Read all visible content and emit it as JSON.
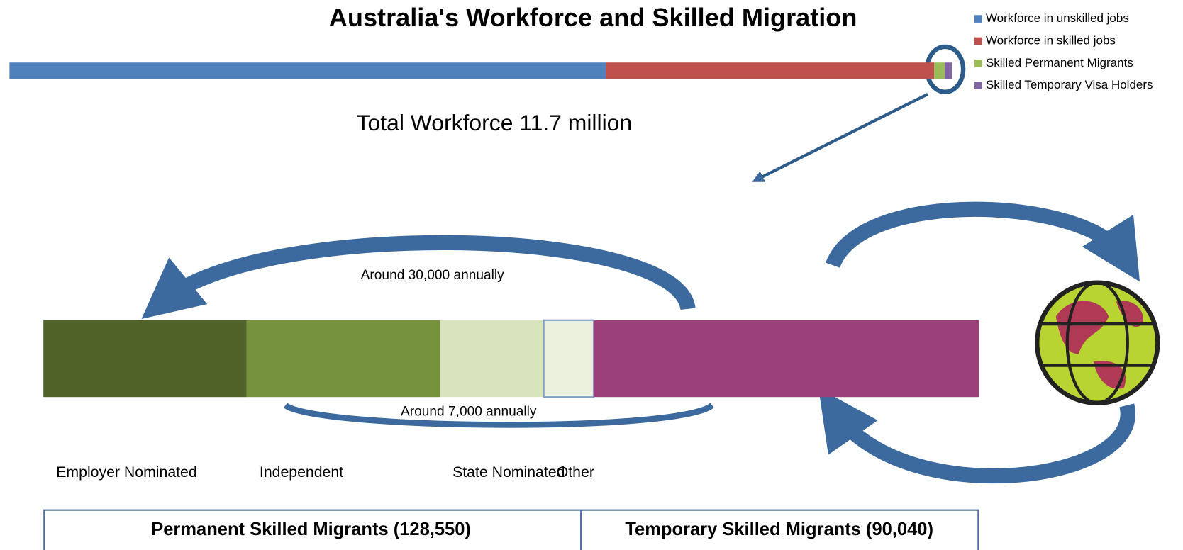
{
  "chart_data": [
    {
      "type": "stacked-bar",
      "title": "Australia's Workforce and Skilled Migration",
      "subtitle": "Total Workforce 11.7 million",
      "legend": "top-right",
      "series": [
        {
          "name": "Workforce in unskilled jobs",
          "color": "#4f81bd",
          "values": [
            7.39
          ]
        },
        {
          "name": "Workforce in skilled jobs",
          "color": "#c0504d",
          "values": [
            4.07
          ]
        },
        {
          "name": "Skilled Permanent Migrants",
          "color": "#9bbb59",
          "values": [
            0.13
          ]
        },
        {
          "name": "Skilled Temporary Visa Holders",
          "color": "#8064a2",
          "values": [
            0.09
          ]
        }
      ]
    },
    {
      "type": "stacked-bar",
      "categories": [
        "Employer Nominated",
        "Independent",
        "State Nominated",
        "Other",
        null
      ],
      "values": [
        47500,
        45100,
        24300,
        11650,
        90040
      ],
      "colors": [
        "#4f6228",
        "#76923c",
        "#d7e4bc",
        "#ebf1dd",
        "#9b4078"
      ],
      "annotations": [
        "Around  30,000 annually",
        "Around  7,000 annually"
      ],
      "groups": [
        "Permanent Skilled Migrants (128,550)",
        "Temporary Skilled  Migrants (90,040)"
      ]
    }
  ]
}
